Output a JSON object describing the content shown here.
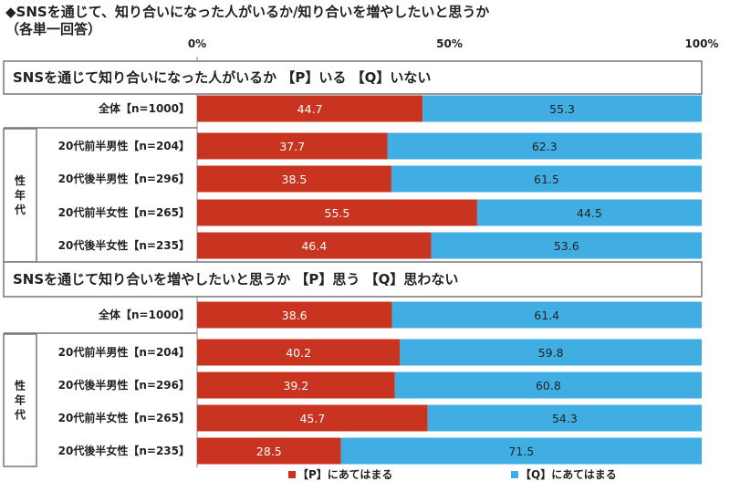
{
  "title": "◆SNSを通じて、知り合いになった人がいるか/知り合いを増やしたいと思うか",
  "subtitle": "（各単一回答）",
  "colors": {
    "p": "#c8341f",
    "q": "#41aee3"
  },
  "chart_data": {
    "type": "bar",
    "orientation": "horizontal",
    "stacked": true,
    "xlim": [
      0,
      100
    ],
    "x_ticks": [
      "0%",
      "50%",
      "100%"
    ],
    "series_names": [
      "【P】にあてはまる",
      "【Q】にあてはまる"
    ],
    "legend_position": "bottom",
    "sections": [
      {
        "title": "SNSを通じて知り合いになった人がいるか 【P】いる 【Q】いない",
        "group_label": "性年代",
        "rows": [
          {
            "label": "全体【n=1000】",
            "p": 44.7,
            "q": 55.3
          },
          {
            "label": "20代前半男性【n=204】",
            "p": 37.7,
            "q": 62.3
          },
          {
            "label": "20代後半男性【n=296】",
            "p": 38.5,
            "q": 61.5
          },
          {
            "label": "20代前半女性【n=265】",
            "p": 55.5,
            "q": 44.5
          },
          {
            "label": "20代後半女性【n=235】",
            "p": 46.4,
            "q": 53.6
          }
        ]
      },
      {
        "title": "SNSを通じて知り合いを増やしたいと思うか 【P】思う 【Q】思わない",
        "group_label": "性年代",
        "rows": [
          {
            "label": "全体【n=1000】",
            "p": 38.6,
            "q": 61.4
          },
          {
            "label": "20代前半男性【n=204】",
            "p": 40.2,
            "q": 59.8
          },
          {
            "label": "20代後半男性【n=296】",
            "p": 39.2,
            "q": 60.8
          },
          {
            "label": "20代前半女性【n=265】",
            "p": 45.7,
            "q": 54.3
          },
          {
            "label": "20代後半女性【n=235】",
            "p": 28.5,
            "q": 71.5
          }
        ]
      }
    ]
  }
}
